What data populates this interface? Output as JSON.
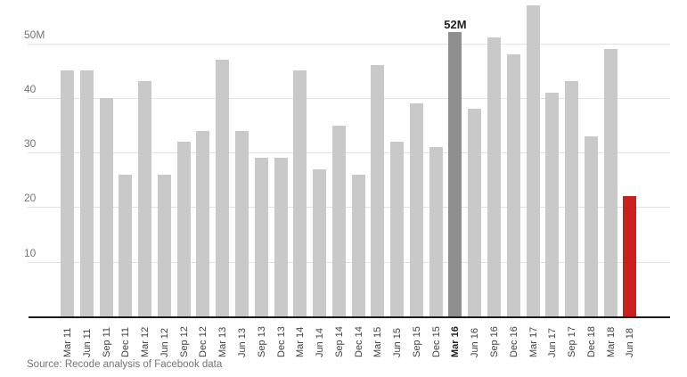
{
  "chart_data": {
    "type": "bar",
    "title": "",
    "xlabel": "",
    "ylabel": "",
    "unit": "M",
    "categories": [
      "Mar 11",
      "Jun 11",
      "Sep 11",
      "Dec 11",
      "Mar 12",
      "Jun 12",
      "Sep 12",
      "Dec 12",
      "Mar 13",
      "Jun 13",
      "Sep 13",
      "Dec 13",
      "Mar 14",
      "Jun 14",
      "Sep 14",
      "Dec 14",
      "Mar 15",
      "Jun 15",
      "Sep 15",
      "Dec 15",
      "Mar 16",
      "Jun 16",
      "Sep 16",
      "Dec 16",
      "Mar 17",
      "Jun 17",
      "Sep 17",
      "Dec 18",
      "Mar 18",
      "Jun 18"
    ],
    "values": [
      45,
      45,
      40,
      26,
      43,
      26,
      32,
      34,
      47,
      34,
      29,
      29,
      45,
      27,
      35,
      26,
      46,
      32,
      39,
      31,
      52,
      38,
      51,
      48,
      57,
      41,
      43,
      33,
      49,
      22
    ],
    "ylim": [
      0,
      57
    ],
    "yticks": [
      {
        "value": 50,
        "label": "50M"
      },
      {
        "value": 40,
        "label": "40"
      },
      {
        "value": 30,
        "label": "30"
      },
      {
        "value": 20,
        "label": "20"
      },
      {
        "value": 10,
        "label": "10"
      }
    ],
    "grid": true,
    "legend": null,
    "annotation": {
      "category": "Mar 16",
      "text": "52M"
    },
    "highlight_dark_category": "Mar 16",
    "highlight_red_category": "Jun 18",
    "bold_x_label": "Mar 16",
    "source": "Source: Recode analysis of Facebook data",
    "colors": {
      "bar_default": "#c9c9c9",
      "bar_highlight_dark": "#8f8f8f",
      "bar_highlight_red": "#c8211e",
      "gridline": "#e2e2e2",
      "axis_line": "#1a1a1a",
      "y_tick_text": "#757575",
      "x_tick_text": "#424242",
      "x_tick_text_bold": "#212121",
      "annotation_text": "#212121",
      "source_text": "#757575",
      "background": "#ffffff"
    }
  }
}
